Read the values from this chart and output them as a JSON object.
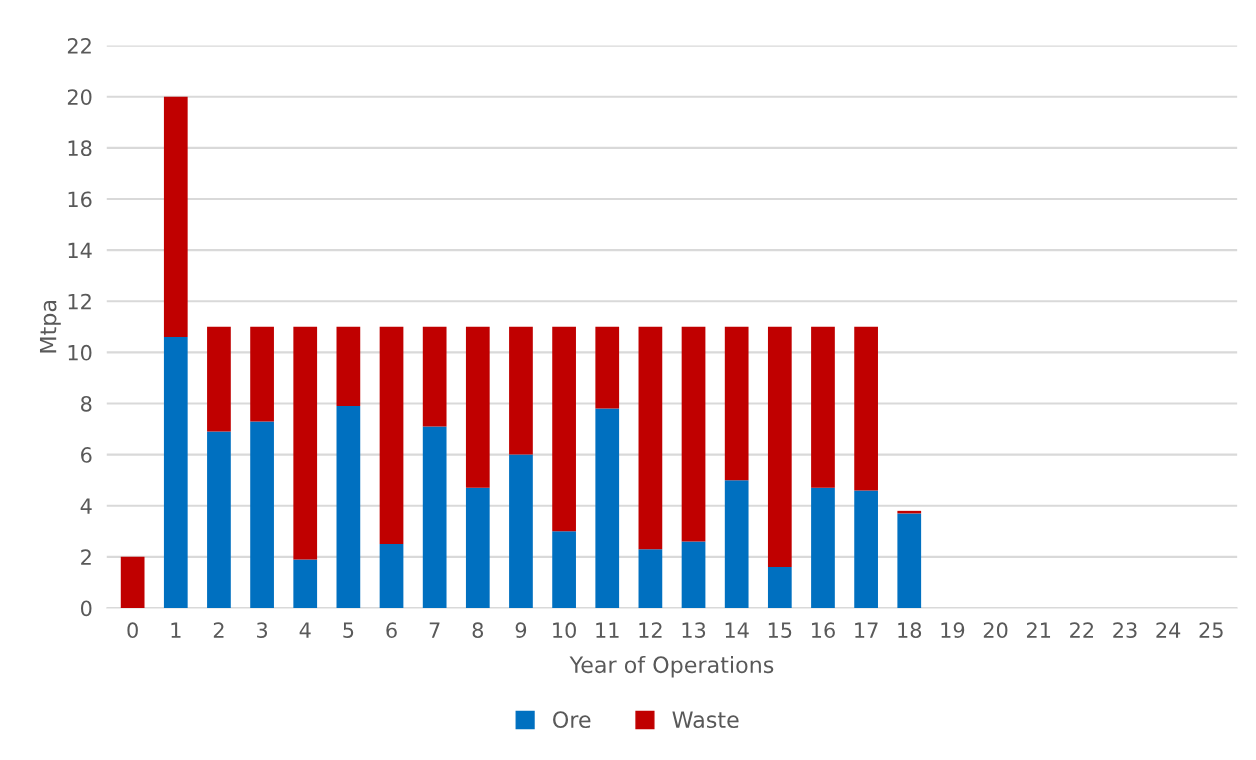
{
  "chart_data": {
    "type": "bar",
    "stacked": true,
    "xlabel": "Year of Operations",
    "ylabel": "Mtpa",
    "categories": [
      "0",
      "1",
      "2",
      "3",
      "4",
      "5",
      "6",
      "7",
      "8",
      "9",
      "10",
      "11",
      "12",
      "13",
      "14",
      "15",
      "16",
      "17",
      "18",
      "19",
      "20",
      "21",
      "22",
      "23",
      "24",
      "25"
    ],
    "series": [
      {
        "name": "Ore",
        "color": "#0070c0",
        "values": [
          0,
          10.6,
          6.9,
          7.3,
          1.9,
          7.9,
          2.5,
          7.1,
          4.7,
          6.0,
          3.0,
          7.8,
          2.3,
          2.6,
          5.0,
          1.6,
          4.7,
          4.6,
          3.7,
          null,
          null,
          null,
          null,
          null,
          null,
          null
        ]
      },
      {
        "name": "Waste",
        "color": "#c00000",
        "values": [
          2.0,
          9.4,
          4.1,
          3.7,
          9.1,
          3.1,
          8.5,
          3.9,
          6.3,
          5.0,
          8.0,
          3.2,
          8.7,
          8.4,
          6.0,
          9.4,
          6.3,
          6.4,
          0.1,
          null,
          null,
          null,
          null,
          null,
          null,
          null
        ]
      }
    ],
    "ylim": [
      0,
      22
    ],
    "yticks": [
      0,
      2,
      4,
      6,
      8,
      10,
      12,
      14,
      16,
      18,
      20,
      22
    ],
    "grid": "y",
    "legend": "bottom"
  }
}
